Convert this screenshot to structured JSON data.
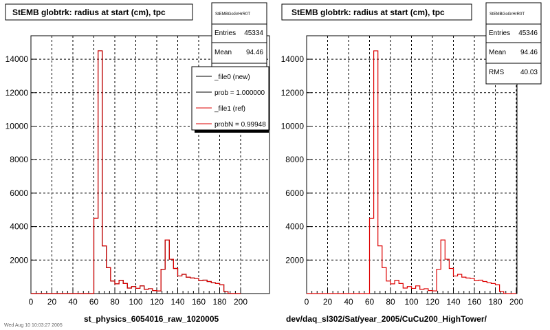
{
  "chart_data": [
    {
      "type": "histogram",
      "title": "StEMB globtrk: radius at start (cm), tpc",
      "xlabel": "st_physics_6054016_raw_1020005",
      "xlim": [
        0,
        200
      ],
      "ylim": [
        0,
        15400
      ],
      "xticks": [
        0,
        20,
        40,
        60,
        80,
        100,
        120,
        140,
        160,
        180,
        200
      ],
      "yticks": [
        2000,
        4000,
        6000,
        8000,
        10000,
        12000,
        14000
      ],
      "grid": true,
      "stats": {
        "title": "StEMBGoGrHrR0T",
        "entries_label": "Entries",
        "entries": "45334",
        "mean_label": "Mean",
        "mean": "94.46"
      },
      "legend": {
        "placement": "top-right",
        "entries": [
          "_file0 (new)",
          "prob = 1.000000",
          "_file1 (ref)",
          "probN = 0.99948"
        ]
      },
      "bin_edges": [
        0,
        4,
        8,
        12,
        16,
        20,
        24,
        28,
        32,
        36,
        40,
        44,
        48,
        52,
        56,
        60,
        64,
        68,
        72,
        76,
        80,
        84,
        88,
        92,
        96,
        100,
        104,
        108,
        112,
        116,
        120,
        124,
        128,
        132,
        136,
        140,
        144,
        148,
        152,
        156,
        160,
        164,
        168,
        172,
        176,
        180,
        184,
        188,
        192,
        196,
        200
      ],
      "series": [
        {
          "name": "_file0 (new)",
          "color": "#000000",
          "values": [
            0,
            0,
            0,
            0,
            0,
            0,
            0,
            0,
            0,
            0,
            0,
            0,
            0,
            0,
            0,
            4500,
            14500,
            2850,
            1550,
            750,
            580,
            790,
            600,
            330,
            420,
            310,
            460,
            250,
            290,
            180,
            160,
            1450,
            3200,
            2050,
            1500,
            1050,
            1150,
            980,
            930,
            900,
            780,
            800,
            720,
            650,
            600,
            530,
            120,
            0,
            0,
            0
          ]
        },
        {
          "name": "_file1 (ref)",
          "color": "#dd0000",
          "values": [
            0,
            0,
            0,
            0,
            0,
            0,
            0,
            0,
            0,
            0,
            0,
            0,
            0,
            0,
            0,
            4500,
            14500,
            2850,
            1550,
            750,
            580,
            790,
            600,
            330,
            420,
            310,
            460,
            250,
            290,
            180,
            160,
            1450,
            3200,
            2050,
            1500,
            1050,
            1150,
            980,
            930,
            900,
            780,
            800,
            720,
            650,
            600,
            530,
            120,
            0,
            0,
            0
          ]
        }
      ]
    },
    {
      "type": "histogram",
      "title": "StEMB globtrk: radius at start (cm), tpc",
      "xlabel": "dev/daq_sl302/Sat/year_2005/CuCu200_HighTower/",
      "xlim": [
        0,
        200
      ],
      "ylim": [
        0,
        15400
      ],
      "xticks": [
        0,
        20,
        40,
        60,
        80,
        100,
        120,
        140,
        160,
        180,
        200
      ],
      "yticks": [
        2000,
        4000,
        6000,
        8000,
        10000,
        12000,
        14000
      ],
      "grid": true,
      "stats": {
        "title": "StEMBGoGrHrR0T",
        "entries_label": "Entries",
        "entries": "45346",
        "mean_label": "Mean",
        "mean": "94.46",
        "rms_label": "RMS",
        "rms": "40.03"
      },
      "bin_edges": [
        0,
        4,
        8,
        12,
        16,
        20,
        24,
        28,
        32,
        36,
        40,
        44,
        48,
        52,
        56,
        60,
        64,
        68,
        72,
        76,
        80,
        84,
        88,
        92,
        96,
        100,
        104,
        108,
        112,
        116,
        120,
        124,
        128,
        132,
        136,
        140,
        144,
        148,
        152,
        156,
        160,
        164,
        168,
        172,
        176,
        180,
        184,
        188,
        192,
        196,
        200
      ],
      "series": [
        {
          "color": "#dd0000",
          "values": [
            0,
            0,
            0,
            0,
            0,
            0,
            0,
            0,
            0,
            0,
            0,
            0,
            0,
            0,
            0,
            4500,
            14500,
            2850,
            1550,
            750,
            580,
            790,
            600,
            330,
            420,
            310,
            460,
            250,
            290,
            180,
            160,
            1450,
            3200,
            2050,
            1500,
            1050,
            1150,
            980,
            930,
            900,
            780,
            800,
            720,
            650,
            600,
            530,
            120,
            0,
            0,
            0
          ]
        }
      ]
    }
  ],
  "footer": {
    "timestamp": "Wed Aug 10 10:03:27 2005"
  }
}
